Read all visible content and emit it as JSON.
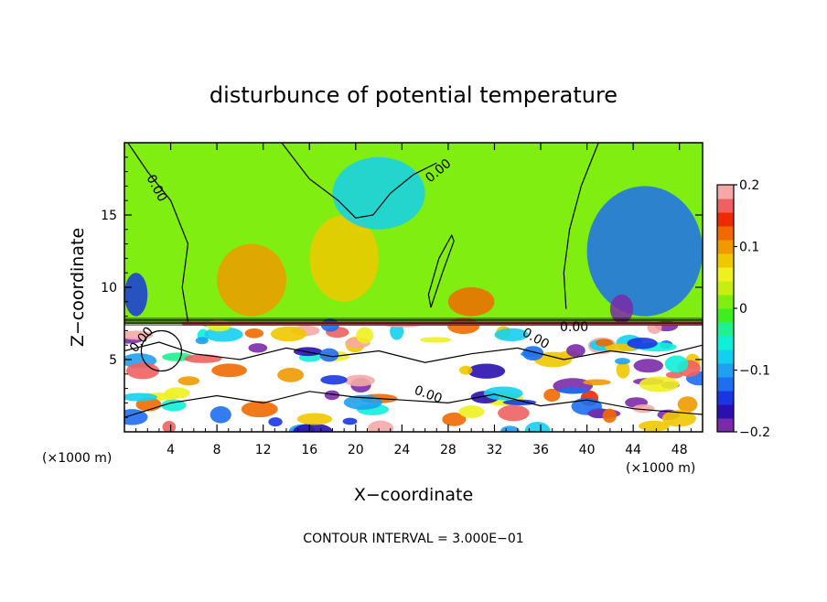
{
  "chart_data": {
    "type": "heatmap",
    "title": "disturbunce of potential temperature",
    "xlabel": "X−coordinate",
    "ylabel": "Z−coordinate",
    "x_unit": "(×1000 m)",
    "z_unit": "(×1000 m)",
    "xlim": [
      0,
      50
    ],
    "ylim": [
      0,
      20
    ],
    "x_ticks": [
      4,
      8,
      12,
      16,
      20,
      24,
      28,
      32,
      36,
      40,
      44,
      48
    ],
    "y_ticks": [
      5,
      10,
      15
    ],
    "colorbar": {
      "range": [
        -0.2,
        0.2
      ],
      "tick_values": [
        -0.2,
        -0.1,
        0,
        0.1,
        0.2
      ],
      "tick_labels": [
        "−0.2",
        "−0.1",
        "0",
        "0.1",
        "0.2"
      ],
      "colors": [
        "#7a2aa8",
        "#2a10b0",
        "#1a36e0",
        "#1e6ef0",
        "#20a0f0",
        "#14d0f0",
        "#10f0d8",
        "#20f090",
        "#40ee20",
        "#80ee10",
        "#c8ee10",
        "#f0f020",
        "#f0c800",
        "#f09a00",
        "#f06a00",
        "#ee2a00",
        "#f06060",
        "#f5a8a8"
      ]
    },
    "contour_interval_text": "CONTOUR INTERVAL = 3.000E−01",
    "contour_labels": [
      "0.00",
      "0.00",
      "0.00",
      "0.00",
      "0.00",
      "0.00"
    ],
    "regions": [
      {
        "x": [
          0,
          50
        ],
        "z": [
          7.5,
          20
        ],
        "value": 0.0
      },
      {
        "x": [
          8,
          14
        ],
        "z": [
          8,
          13
        ],
        "value": 0.11
      },
      {
        "x": [
          16,
          22
        ],
        "z": [
          9,
          15
        ],
        "value": 0.08
      },
      {
        "x": [
          18,
          26
        ],
        "z": [
          14,
          19
        ],
        "value": -0.07
      },
      {
        "x": [
          28,
          32
        ],
        "z": [
          8,
          10
        ],
        "value": 0.12
      },
      {
        "x": [
          40,
          50
        ],
        "z": [
          8,
          17
        ],
        "value": -0.12
      },
      {
        "x": [
          42,
          44
        ],
        "z": [
          7.5,
          9.5
        ],
        "value": -0.2
      },
      {
        "x": [
          0,
          2
        ],
        "z": [
          8,
          11
        ],
        "value": -0.14
      },
      {
        "x": [
          0,
          50
        ],
        "z": [
          0,
          7.5
        ],
        "value": -0.1
      }
    ],
    "grid": false,
    "legend": "colorbar-right"
  }
}
